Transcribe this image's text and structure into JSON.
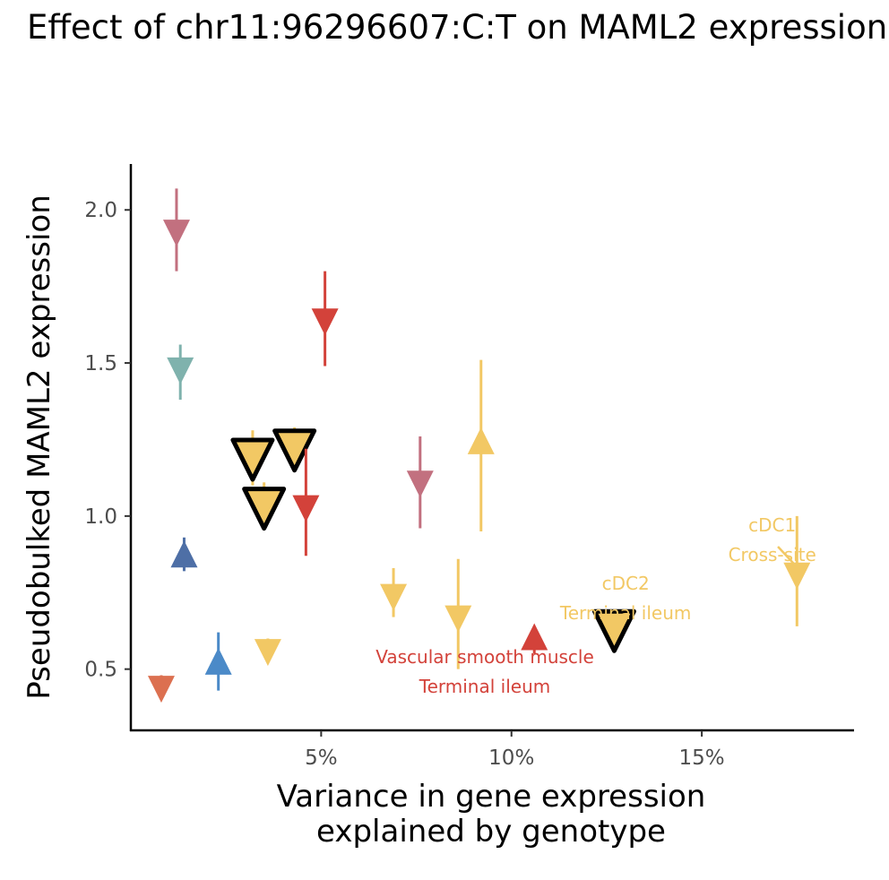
{
  "chart_data": {
    "type": "scatter",
    "title": "Effect of chr11:96296607:C:T on MAML2 expression",
    "xlabel": [
      "Variance in gene expression",
      "explained by genotype"
    ],
    "ylabel": "Pseudobulked MAML2 expression",
    "xlim": [
      0.0,
      19.0
    ],
    "ylim": [
      0.3,
      2.15
    ],
    "x_ticks": [
      {
        "value": 5,
        "label": "5%"
      },
      {
        "value": 10,
        "label": "10%"
      },
      {
        "value": 15,
        "label": "15%"
      }
    ],
    "y_ticks": [
      {
        "value": 0.5,
        "label": "0.5"
      },
      {
        "value": 1.0,
        "label": "1.0"
      },
      {
        "value": 1.5,
        "label": "1.5"
      },
      {
        "value": 2.0,
        "label": "2.0"
      }
    ],
    "grid": false,
    "points": [
      {
        "x": 1.2,
        "y": 1.93,
        "low": 1.8,
        "high": 2.07,
        "direction": "down",
        "color": "#c2707f",
        "highlight": false
      },
      {
        "x": 5.1,
        "y": 1.64,
        "low": 1.49,
        "high": 1.8,
        "direction": "down",
        "color": "#d3423a",
        "highlight": false
      },
      {
        "x": 1.3,
        "y": 1.48,
        "low": 1.38,
        "high": 1.56,
        "direction": "down",
        "color": "#7fb2ad",
        "highlight": false
      },
      {
        "x": 3.2,
        "y": 1.19,
        "low": 1.1,
        "high": 1.28,
        "direction": "down",
        "color": "#f2c864",
        "highlight": true
      },
      {
        "x": 4.3,
        "y": 1.22,
        "low": 1.15,
        "high": 1.29,
        "direction": "down",
        "color": "#f2c864",
        "highlight": true
      },
      {
        "x": 4.6,
        "y": 1.03,
        "low": 0.87,
        "high": 1.22,
        "direction": "down",
        "color": "#d3423a",
        "highlight": false
      },
      {
        "x": 3.5,
        "y": 1.03,
        "low": 0.96,
        "high": 1.11,
        "direction": "down",
        "color": "#f2c864",
        "highlight": true
      },
      {
        "x": 7.6,
        "y": 1.11,
        "low": 0.96,
        "high": 1.26,
        "direction": "down",
        "color": "#c2707f",
        "highlight": false
      },
      {
        "x": 9.2,
        "y": 1.24,
        "low": 0.95,
        "high": 1.51,
        "direction": "up",
        "color": "#f2c864",
        "highlight": false
      },
      {
        "x": 1.4,
        "y": 0.87,
        "low": 0.82,
        "high": 0.93,
        "direction": "up",
        "color": "#4e6fa6",
        "highlight": false
      },
      {
        "x": 6.9,
        "y": 0.74,
        "low": 0.67,
        "high": 0.83,
        "direction": "down",
        "color": "#f2c864",
        "highlight": false
      },
      {
        "x": 8.6,
        "y": 0.67,
        "low": 0.5,
        "high": 0.86,
        "direction": "down",
        "color": "#f2c864",
        "highlight": false
      },
      {
        "x": 10.6,
        "y": 0.6,
        "low": 0.55,
        "high": 0.64,
        "direction": "up",
        "color": "#d3423a",
        "highlight": false
      },
      {
        "x": 12.7,
        "y": 0.63,
        "low": 0.6,
        "high": 0.66,
        "direction": "down",
        "color": "#f2c864",
        "highlight": true
      },
      {
        "x": 17.5,
        "y": 0.81,
        "low": 0.64,
        "high": 1.0,
        "direction": "down",
        "color": "#f2c864",
        "highlight": false
      },
      {
        "x": 2.3,
        "y": 0.52,
        "low": 0.43,
        "high": 0.62,
        "direction": "up",
        "color": "#4b8ac8",
        "highlight": false
      },
      {
        "x": 3.6,
        "y": 0.56,
        "low": 0.53,
        "high": 0.6,
        "direction": "down",
        "color": "#f2c864",
        "highlight": false
      },
      {
        "x": 0.8,
        "y": 0.44,
        "low": 0.41,
        "high": 0.48,
        "direction": "down",
        "color": "#dc7050",
        "highlight": false
      }
    ],
    "annotations": [
      {
        "lines": [
          "Vascular smooth muscle",
          "Terminal ileum"
        ],
        "color": "#d3423a",
        "x": 9.3,
        "y": 0.52
      },
      {
        "lines": [
          "cDC2",
          "Terminal ileum"
        ],
        "color": "#f2c864",
        "x": 13.0,
        "y": 0.76
      },
      {
        "lines": [
          "cDC1",
          "Cross-site"
        ],
        "color": "#f2c864",
        "x": 16.85,
        "y": 0.95
      }
    ],
    "annotation_pointer": {
      "from": [
        17.0,
        0.9
      ],
      "to": [
        17.45,
        0.84
      ],
      "color": "#f2c864"
    }
  }
}
